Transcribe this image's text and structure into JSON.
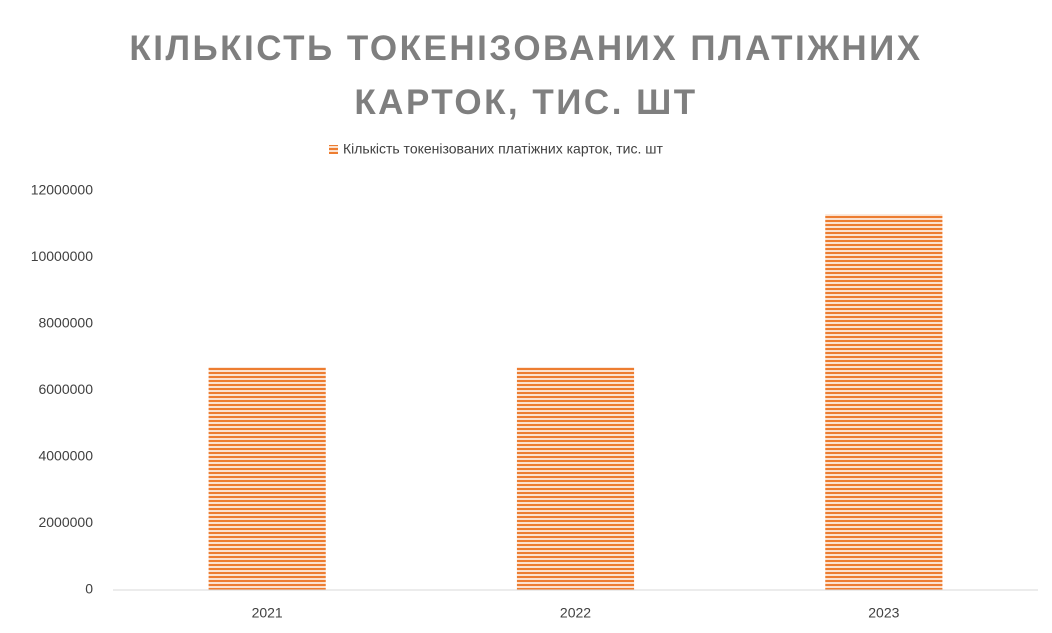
{
  "chart_data": {
    "type": "bar",
    "title": "КІЛЬКІСТЬ ТОКЕНІЗОВАНИХ ПЛАТІЖНИХ КАРТОК, ТИС. ШТ",
    "categories": [
      "2021",
      "2022",
      "2023"
    ],
    "series": [
      {
        "name": "Кількість токенізованих платіжних карток, тис. шт",
        "color": "#ed7d31",
        "values": [
          6700000,
          6700000,
          11300000
        ]
      }
    ],
    "ylim": [
      0,
      12000000
    ],
    "yticks": [
      0,
      2000000,
      4000000,
      6000000,
      8000000,
      10000000,
      12000000
    ],
    "grid": false,
    "legend": "top"
  }
}
